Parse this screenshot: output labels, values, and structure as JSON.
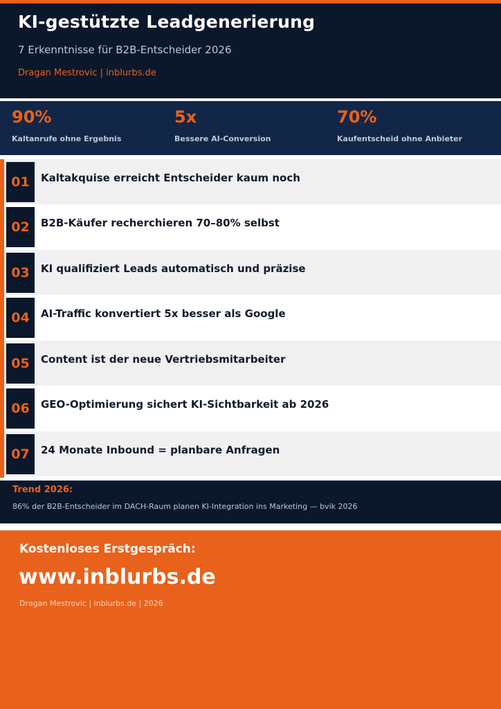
{
  "header": {
    "title": "KI-gestützte Leadgenerierung",
    "subtitle": "7 Erkenntnisse für B2B-Entscheider 2026",
    "byline": "Dragan Mestrovic  |  inblurbs.de"
  },
  "stats": [
    {
      "value": "90%",
      "label": "Kaltanrufe ohne Ergebnis"
    },
    {
      "value": "5x",
      "label": "Bessere AI-Conversion"
    },
    {
      "value": "70%",
      "label": "Kaufentscheid ohne Anbieter"
    }
  ],
  "insights": [
    {
      "num": "01",
      "text": "Kaltakquise erreicht Entscheider kaum noch"
    },
    {
      "num": "02",
      "text": "B2B-Käufer recherchieren 70–80% selbst"
    },
    {
      "num": "03",
      "text": "KI qualifiziert Leads automatisch und präzise"
    },
    {
      "num": "04",
      "text": "AI-Traffic konvertiert 5x besser als Google"
    },
    {
      "num": "05",
      "text": "Content ist der neue Vertriebsmitarbeiter"
    },
    {
      "num": "06",
      "text": "GEO-Optimierung sichert KI-Sichtbarkeit ab 2026"
    },
    {
      "num": "07",
      "text": "24 Monate Inbound = planbare Anfragen"
    }
  ],
  "trend": {
    "label": "Trend 2026:",
    "text": "86% der B2B-Entscheider im DACH-Raum planen KI-Integration ins Marketing — bvik 2026"
  },
  "footer": {
    "cta_label": "Kostenloses Erstgespräch:",
    "url": "www.inblurbs.de",
    "byline": "Dragan Mestrovic  |  inblurbs.de  |  2026"
  },
  "colors": {
    "accent": "#e8621c",
    "navy": "#0b172a",
    "stat_band": "#122747"
  }
}
